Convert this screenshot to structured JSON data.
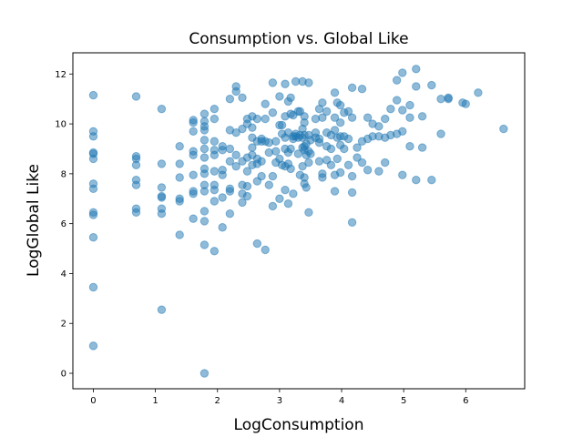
{
  "chart_data": {
    "type": "scatter",
    "title": "Consumption vs. Global Like",
    "xlabel": "LogConsumption",
    "ylabel": "LogGlobal Like",
    "xlim": [
      -0.33,
      6.95
    ],
    "ylim": [
      -0.62,
      12.85
    ],
    "xticks": [
      0,
      1,
      2,
      3,
      4,
      5,
      6
    ],
    "yticks": [
      0,
      2,
      4,
      6,
      8,
      10,
      12
    ],
    "grid": false,
    "marker_color": "#1f77b4",
    "points": [
      [
        0,
        1.1
      ],
      [
        0,
        3.45
      ],
      [
        0,
        5.45
      ],
      [
        0,
        6.35
      ],
      [
        0,
        6.45
      ],
      [
        0,
        7.4
      ],
      [
        0,
        7.6
      ],
      [
        0,
        8.6
      ],
      [
        0,
        8.8
      ],
      [
        0,
        8.85
      ],
      [
        0,
        9.5
      ],
      [
        0,
        9.7
      ],
      [
        0,
        11.15
      ],
      [
        0.69,
        6.45
      ],
      [
        0.69,
        6.6
      ],
      [
        0.69,
        7.55
      ],
      [
        0.69,
        7.75
      ],
      [
        0.69,
        8.35
      ],
      [
        0.69,
        8.6
      ],
      [
        0.69,
        8.7
      ],
      [
        0.69,
        11.1
      ],
      [
        1.1,
        2.55
      ],
      [
        1.1,
        6.4
      ],
      [
        1.1,
        6.6
      ],
      [
        1.1,
        7.05
      ],
      [
        1.1,
        7.1
      ],
      [
        1.1,
        7.45
      ],
      [
        1.1,
        8.4
      ],
      [
        1.1,
        10.6
      ],
      [
        1.39,
        5.55
      ],
      [
        1.39,
        6.9
      ],
      [
        1.39,
        7.0
      ],
      [
        1.39,
        7.85
      ],
      [
        1.39,
        8.4
      ],
      [
        1.39,
        9.1
      ],
      [
        1.61,
        6.2
      ],
      [
        1.61,
        7.2
      ],
      [
        1.61,
        7.3
      ],
      [
        1.61,
        7.95
      ],
      [
        1.61,
        8.75
      ],
      [
        1.61,
        8.9
      ],
      [
        1.61,
        9.7
      ],
      [
        1.61,
        10.05
      ],
      [
        1.61,
        10.15
      ],
      [
        1.79,
        0.0
      ],
      [
        1.79,
        5.15
      ],
      [
        1.79,
        6.1
      ],
      [
        1.79,
        6.5
      ],
      [
        1.79,
        7.3
      ],
      [
        1.79,
        7.55
      ],
      [
        1.79,
        8.0
      ],
      [
        1.79,
        8.2
      ],
      [
        1.79,
        8.65
      ],
      [
        1.79,
        9.0
      ],
      [
        1.79,
        9.35
      ],
      [
        1.79,
        9.75
      ],
      [
        1.79,
        9.9
      ],
      [
        1.79,
        10.1
      ],
      [
        1.79,
        10.4
      ],
      [
        1.95,
        4.9
      ],
      [
        1.95,
        6.9
      ],
      [
        1.95,
        7.35
      ],
      [
        1.95,
        7.55
      ],
      [
        1.95,
        8.1
      ],
      [
        1.95,
        8.75
      ],
      [
        1.95,
        8.95
      ],
      [
        1.95,
        9.3
      ],
      [
        1.95,
        10.2
      ],
      [
        1.95,
        10.6
      ],
      [
        2.08,
        5.85
      ],
      [
        2.08,
        7.05
      ],
      [
        2.08,
        7.95
      ],
      [
        2.08,
        8.15
      ],
      [
        2.08,
        8.95
      ],
      [
        2.08,
        9.1
      ],
      [
        2.2,
        6.4
      ],
      [
        2.2,
        7.3
      ],
      [
        2.2,
        7.4
      ],
      [
        2.2,
        8.5
      ],
      [
        2.2,
        9.0
      ],
      [
        2.2,
        9.75
      ],
      [
        2.2,
        11.0
      ],
      [
        2.3,
        8.3
      ],
      [
        2.3,
        8.75
      ],
      [
        2.3,
        9.65
      ],
      [
        2.3,
        11.3
      ],
      [
        2.3,
        11.5
      ],
      [
        2.4,
        6.85
      ],
      [
        2.4,
        7.2
      ],
      [
        2.4,
        7.55
      ],
      [
        2.4,
        8.5
      ],
      [
        2.4,
        9.8
      ],
      [
        2.4,
        11.05
      ],
      [
        2.48,
        7.1
      ],
      [
        2.48,
        7.5
      ],
      [
        2.48,
        8.1
      ],
      [
        2.48,
        8.65
      ],
      [
        2.48,
        10.0
      ],
      [
        2.48,
        10.2
      ],
      [
        2.56,
        8.35
      ],
      [
        2.56,
        8.75
      ],
      [
        2.56,
        9.05
      ],
      [
        2.56,
        9.45
      ],
      [
        2.56,
        9.85
      ],
      [
        2.56,
        10.3
      ],
      [
        2.64,
        5.2
      ],
      [
        2.64,
        7.7
      ],
      [
        2.64,
        8.4
      ],
      [
        2.64,
        8.6
      ],
      [
        2.64,
        9.3
      ],
      [
        2.64,
        10.2
      ],
      [
        2.71,
        7.9
      ],
      [
        2.71,
        8.5
      ],
      [
        2.71,
        9.3
      ],
      [
        2.71,
        9.4
      ],
      [
        2.77,
        4.95
      ],
      [
        2.77,
        9.3
      ],
      [
        2.77,
        10.2
      ],
      [
        2.77,
        10.8
      ],
      [
        2.83,
        7.55
      ],
      [
        2.83,
        8.85
      ],
      [
        2.83,
        9.25
      ],
      [
        2.89,
        6.7
      ],
      [
        2.89,
        7.9
      ],
      [
        2.89,
        10.45
      ],
      [
        2.89,
        11.65
      ],
      [
        2.94,
        8.45
      ],
      [
        2.94,
        8.9
      ],
      [
        2.94,
        9.3
      ],
      [
        3.0,
        7.0
      ],
      [
        3.0,
        8.6
      ],
      [
        3.0,
        9.95
      ],
      [
        3.0,
        11.1
      ],
      [
        3.04,
        8.35
      ],
      [
        3.04,
        9.6
      ],
      [
        3.04,
        9.95
      ],
      [
        3.09,
        7.35
      ],
      [
        3.09,
        8.3
      ],
      [
        3.09,
        9.0
      ],
      [
        3.09,
        9.45
      ],
      [
        3.09,
        10.3
      ],
      [
        3.09,
        11.6
      ],
      [
        3.14,
        6.8
      ],
      [
        3.14,
        8.4
      ],
      [
        3.14,
        8.85
      ],
      [
        3.14,
        9.65
      ],
      [
        3.14,
        10.9
      ],
      [
        3.18,
        8.2
      ],
      [
        3.18,
        9.0
      ],
      [
        3.18,
        10.4
      ],
      [
        3.18,
        11.05
      ],
      [
        3.22,
        7.2
      ],
      [
        3.22,
        9.4
      ],
      [
        3.22,
        9.5
      ],
      [
        3.22,
        10.35
      ],
      [
        3.26,
        9.5
      ],
      [
        3.26,
        9.6
      ],
      [
        3.26,
        11.7
      ],
      [
        3.3,
        8.8
      ],
      [
        3.3,
        9.45
      ],
      [
        3.3,
        10.5
      ],
      [
        3.33,
        7.95
      ],
      [
        3.33,
        9.55
      ],
      [
        3.33,
        10.5
      ],
      [
        3.37,
        8.3
      ],
      [
        3.37,
        9.05
      ],
      [
        3.37,
        9.45
      ],
      [
        3.37,
        9.8
      ],
      [
        3.37,
        11.7
      ],
      [
        3.4,
        7.6
      ],
      [
        3.4,
        7.85
      ],
      [
        3.4,
        8.95
      ],
      [
        3.4,
        9.1
      ],
      [
        3.4,
        9.55
      ],
      [
        3.4,
        10.05
      ],
      [
        3.4,
        10.3
      ],
      [
        3.43,
        7.45
      ],
      [
        3.43,
        8.75
      ],
      [
        3.43,
        9.2
      ],
      [
        3.47,
        6.45
      ],
      [
        3.47,
        8.45
      ],
      [
        3.47,
        8.9
      ],
      [
        3.47,
        9.55
      ],
      [
        3.47,
        11.65
      ],
      [
        3.5,
        8.8
      ],
      [
        3.5,
        9.35
      ],
      [
        3.58,
        9.45
      ],
      [
        3.58,
        9.65
      ],
      [
        3.58,
        10.2
      ],
      [
        3.64,
        8.5
      ],
      [
        3.64,
        9.25
      ],
      [
        3.64,
        9.4
      ],
      [
        3.64,
        10.6
      ],
      [
        3.69,
        7.85
      ],
      [
        3.69,
        8.0
      ],
      [
        3.69,
        10.25
      ],
      [
        3.69,
        10.85
      ],
      [
        3.76,
        8.55
      ],
      [
        3.76,
        9.1
      ],
      [
        3.76,
        9.65
      ],
      [
        3.76,
        10.5
      ],
      [
        3.83,
        8.35
      ],
      [
        3.83,
        9.0
      ],
      [
        3.83,
        9.55
      ],
      [
        3.89,
        7.3
      ],
      [
        3.89,
        7.95
      ],
      [
        3.89,
        9.75
      ],
      [
        3.89,
        10.25
      ],
      [
        3.89,
        11.25
      ],
      [
        3.93,
        8.6
      ],
      [
        3.93,
        9.45
      ],
      [
        3.93,
        10.85
      ],
      [
        3.98,
        8.05
      ],
      [
        3.98,
        9.15
      ],
      [
        3.98,
        9.5
      ],
      [
        3.98,
        10.05
      ],
      [
        3.98,
        10.75
      ],
      [
        4.04,
        9.0
      ],
      [
        4.04,
        9.5
      ],
      [
        4.04,
        10.45
      ],
      [
        4.11,
        8.35
      ],
      [
        4.11,
        9.4
      ],
      [
        4.11,
        10.5
      ],
      [
        4.17,
        6.05
      ],
      [
        4.17,
        7.25
      ],
      [
        4.17,
        7.9
      ],
      [
        4.17,
        10.25
      ],
      [
        4.17,
        11.45
      ],
      [
        4.25,
        8.65
      ],
      [
        4.25,
        9.05
      ],
      [
        4.33,
        8.45
      ],
      [
        4.33,
        9.3
      ],
      [
        4.33,
        11.4
      ],
      [
        4.42,
        8.15
      ],
      [
        4.42,
        9.4
      ],
      [
        4.42,
        10.25
      ],
      [
        4.5,
        9.5
      ],
      [
        4.5,
        10.0
      ],
      [
        4.6,
        8.1
      ],
      [
        4.6,
        9.5
      ],
      [
        4.6,
        9.9
      ],
      [
        4.7,
        8.45
      ],
      [
        4.7,
        9.45
      ],
      [
        4.7,
        10.2
      ],
      [
        4.79,
        9.55
      ],
      [
        4.79,
        10.6
      ],
      [
        4.89,
        9.6
      ],
      [
        4.89,
        10.95
      ],
      [
        4.89,
        11.75
      ],
      [
        4.98,
        7.95
      ],
      [
        4.98,
        9.7
      ],
      [
        4.98,
        10.55
      ],
      [
        4.98,
        12.05
      ],
      [
        5.1,
        9.1
      ],
      [
        5.1,
        10.25
      ],
      [
        5.1,
        10.75
      ],
      [
        5.2,
        7.75
      ],
      [
        5.2,
        11.5
      ],
      [
        5.2,
        12.2
      ],
      [
        5.3,
        9.05
      ],
      [
        5.3,
        10.3
      ],
      [
        5.45,
        7.75
      ],
      [
        5.45,
        11.55
      ],
      [
        5.6,
        9.6
      ],
      [
        5.6,
        11.0
      ],
      [
        5.72,
        11.0
      ],
      [
        5.72,
        11.05
      ],
      [
        5.95,
        10.85
      ],
      [
        6.0,
        10.8
      ],
      [
        6.2,
        11.25
      ],
      [
        6.61,
        9.8
      ]
    ]
  }
}
